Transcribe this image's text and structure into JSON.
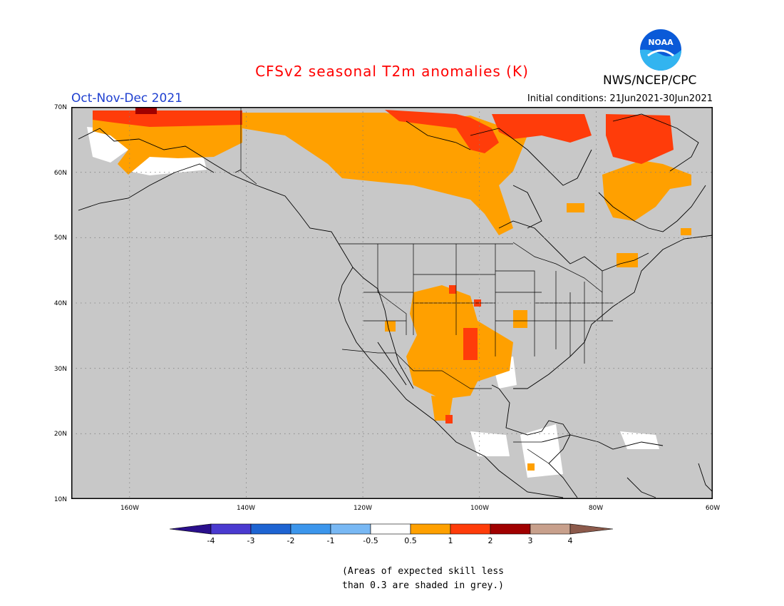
{
  "header": {
    "title": "CFSv2 seasonal T2m anomalies (K)",
    "season": "Oct-Nov-Dec 2021",
    "initial_conditions": "Initial conditions: 21Jun2021-30Jun2021",
    "agency": "NWS/NCEP/CPC",
    "logo_text": "NOAA",
    "title_color": "#ff0000",
    "season_color": "#1e3fd0"
  },
  "map": {
    "extent": {
      "lon": [
        -170,
        -60
      ],
      "lat": [
        10,
        70
      ]
    },
    "background_color": "#c8c8c8",
    "lat_labels": [
      "70N",
      "60N",
      "50N",
      "40N",
      "30N",
      "20N",
      "10N"
    ],
    "lon_labels": [
      "160W",
      "140W",
      "120W",
      "100W",
      "80W",
      "60W"
    ],
    "gridlines": "dotted"
  },
  "legend": {
    "labels": [
      "-4",
      "-3",
      "-2",
      "-1",
      "-0.5",
      "0.5",
      "1",
      "2",
      "3",
      "4"
    ],
    "colors": [
      "#2a0f8c",
      "#4a3ad0",
      "#1e64d2",
      "#3c96ec",
      "#78b8f4",
      "#ffffff",
      "#ffa000",
      "#ff3c0a",
      "#a00000",
      "#c8a08c",
      "#8c5a4b"
    ]
  },
  "note": "(Areas of expected skill less\nthan 0.3 are shaded in grey.)"
}
